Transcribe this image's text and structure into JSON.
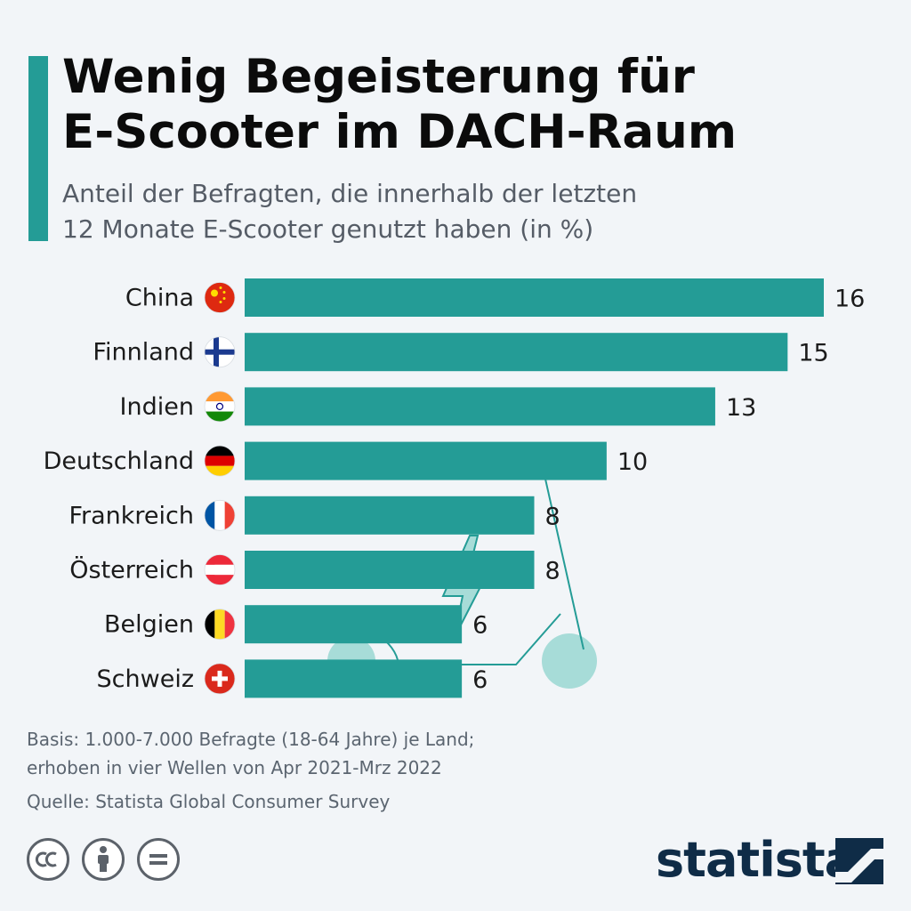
{
  "header": {
    "title_line1": "Wenig Begeisterung für",
    "title_line2": "E-Scooter im DACH-Raum",
    "subtitle_line1": "Anteil der Befragten, die innerhalb der letzten",
    "subtitle_line2": "12 Monate E-Scooter genutzt haben (in %)"
  },
  "chart_data": {
    "type": "bar",
    "orientation": "horizontal",
    "categories": [
      "China",
      "Finnland",
      "Indien",
      "Deutschland",
      "Frankreich",
      "Österreich",
      "Belgien",
      "Schweiz"
    ],
    "values": [
      16,
      15,
      13,
      10,
      8,
      8,
      6,
      6
    ],
    "flags": [
      "china-flag-icon",
      "finland-flag-icon",
      "india-flag-icon",
      "germany-flag-icon",
      "france-flag-icon",
      "austria-flag-icon",
      "belgium-flag-icon",
      "switzerland-flag-icon"
    ],
    "bar_color": "#249c96",
    "grid": false,
    "xlim": [
      0,
      16
    ]
  },
  "footer": {
    "basis_line1": "Basis: 1.000-7.000 Befragte (18-64 Jahre) je Land;",
    "basis_line2": "erhoben in vier Wellen von Apr 2021-Mrz 2022",
    "source": "Quelle: Statista Global Consumer Survey"
  },
  "brand": {
    "name": "statista",
    "color": "#0f2c47"
  },
  "license_icons": [
    "creative-commons-icon",
    "attribution-icon",
    "no-derivatives-icon"
  ],
  "decoration": [
    "scooter-icon",
    "lightning-bolt-icon"
  ]
}
